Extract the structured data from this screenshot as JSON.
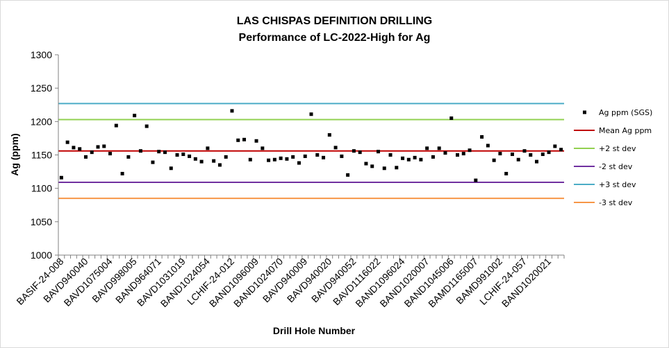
{
  "chart_data": {
    "type": "scatter",
    "title": "LAS CHISPAS DEFINITION DRILLING",
    "subtitle": "Performance of LC-2022-High for Ag",
    "xlabel": "Drill Hole Number",
    "ylabel": "Ag (ppm)",
    "ylim": [
      1000,
      1300
    ],
    "yticks": [
      1000,
      1050,
      1100,
      1150,
      1200,
      1250,
      1300
    ],
    "grid": false,
    "legend_position": "right",
    "xtick_labels": [
      "BASIF-24-008",
      "BAVD940040",
      "BAVD1075004",
      "BAVD998005",
      "BAND964071",
      "BAVD1031019",
      "BAND1024054",
      "LCHIF-24-012",
      "BAND1096009",
      "BAND1024070",
      "BAVD940009",
      "BAVD940020",
      "BAVD940052",
      "BAVD1116022",
      "BAND1096024",
      "BAND1020007",
      "BAND1045006",
      "BAMD1165007",
      "BAMD991002",
      "LCHIF-24-057",
      "BAND1020021"
    ],
    "series": [
      {
        "name": "Ag ppm (SGS)",
        "kind": "points",
        "color": "#000000",
        "values": [
          1116,
          1169,
          1161,
          1159,
          1147,
          1154,
          1162,
          1163,
          1152,
          1194,
          1122,
          1147,
          1209,
          1156,
          1193,
          1139,
          1155,
          1154,
          1130,
          1150,
          1151,
          1148,
          1144,
          1140,
          1160,
          1141,
          1135,
          1147,
          1216,
          1172,
          1173,
          1143,
          1171,
          1160,
          1142,
          1143,
          1145,
          1144,
          1147,
          1138,
          1148,
          1211,
          1150,
          1146,
          1180,
          1161,
          1148,
          1120,
          1156,
          1154,
          1137,
          1133,
          1155,
          1130,
          1150,
          1131,
          1145,
          1143,
          1146,
          1143,
          1160,
          1147,
          1160,
          1153,
          1205,
          1150,
          1152,
          1157,
          1112,
          1177,
          1164,
          1142,
          1152,
          1122,
          1151,
          1143,
          1156,
          1150,
          1140,
          1151,
          1154,
          1163,
          1158
        ]
      },
      {
        "name": "Mean Ag ppm",
        "kind": "line",
        "value": 1156,
        "color": "#c00000"
      },
      {
        "name": "+2 st dev",
        "kind": "line",
        "value": 1203,
        "color": "#92d050"
      },
      {
        "name": "-2 st dev",
        "kind": "line",
        "value": 1109,
        "color": "#7030a0"
      },
      {
        "name": "+3 st dev",
        "kind": "line",
        "value": 1227,
        "color": "#4bacc6"
      },
      {
        "name": "-3 st dev",
        "kind": "line",
        "value": 1085,
        "color": "#f79646"
      }
    ]
  }
}
